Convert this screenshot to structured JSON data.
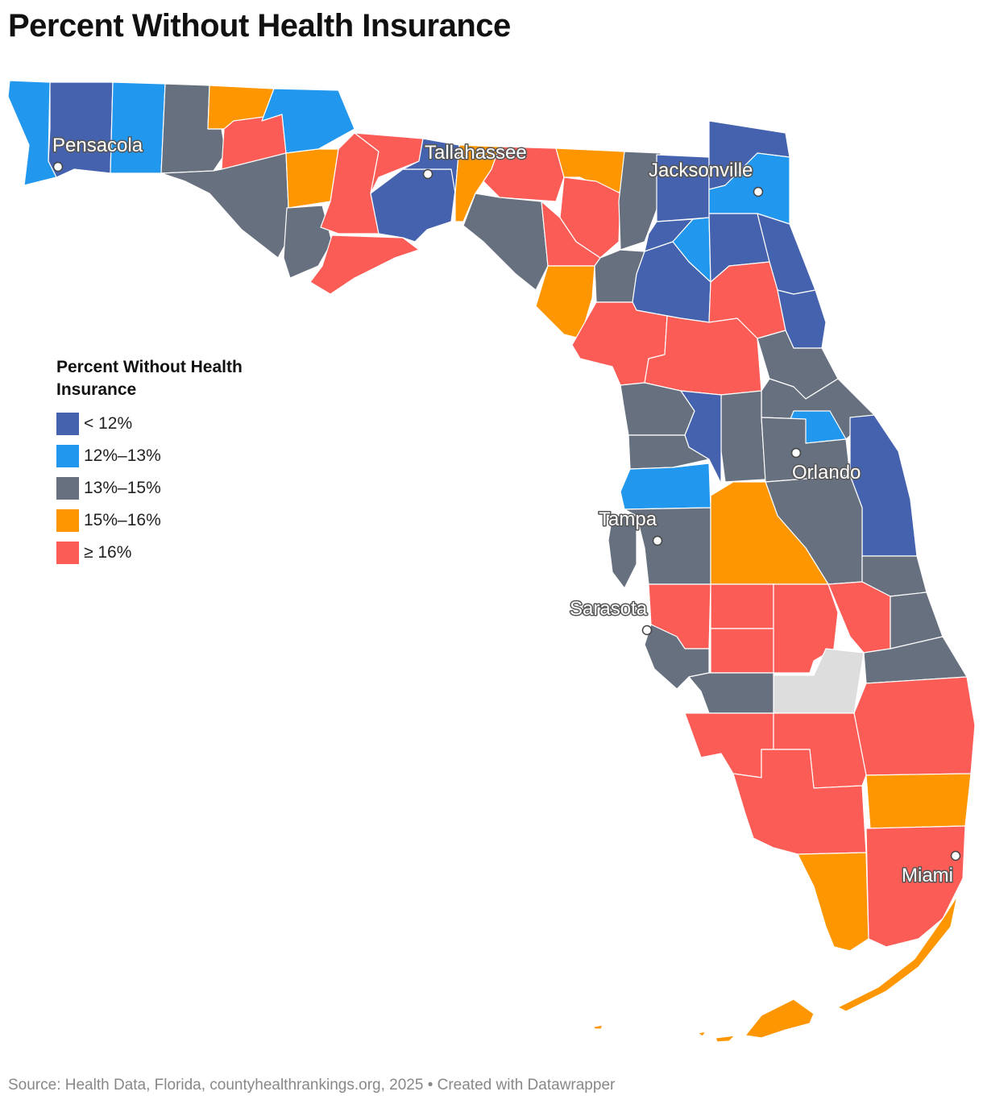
{
  "title": "Percent Without Health Insurance",
  "source": "Source: Health Data, Florida, countyhealthrankings.org, 2025 • Created with Datawrapper",
  "legend": {
    "title": "Percent Without Health Insurance",
    "items": [
      {
        "label": "< 12%",
        "color": "#4462ad"
      },
      {
        "label": "12%–13%",
        "color": "#2197ee"
      },
      {
        "label": "13%–15%",
        "color": "#66707f"
      },
      {
        "label": "15%–16%",
        "color": "#fd9600"
      },
      {
        "label": "≥ 16%",
        "color": "#fc5c56"
      }
    ]
  },
  "no_data_color": "#dddddd",
  "cities": [
    {
      "name": "Pensacola"
    },
    {
      "name": "Tallahassee"
    },
    {
      "name": "Jacksonville"
    },
    {
      "name": "Orlando"
    },
    {
      "name": "Tampa"
    },
    {
      "name": "Sarasota"
    },
    {
      "name": "Miami"
    }
  ]
}
